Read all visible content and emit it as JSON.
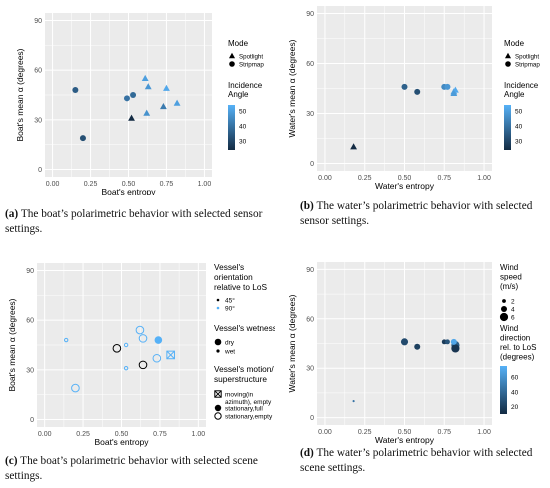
{
  "colors": {
    "panel_bg": "#ebebeb",
    "grid": "#ffffff",
    "scale_high": "#56b1f7",
    "scale_low": "#132b43",
    "text": "#000000",
    "axis_tick_text": "#4d4d4d",
    "open_dark": "#000000",
    "open_light": "#56b1f7"
  },
  "chart_data": [
    {
      "id": "a",
      "type": "scatter",
      "title": "",
      "xlabel": "Boat's entropy",
      "ylabel": "Boat's mean α (degrees)",
      "xlim": [
        -0.05,
        1.05
      ],
      "ylim": [
        -4.5,
        94.5
      ],
      "xticks": [
        "0.00",
        "0.25",
        "0.50",
        "0.75",
        "1.00"
      ],
      "xtick_values": [
        0,
        0.25,
        0.5,
        0.75,
        1.0
      ],
      "yticks": [
        "0",
        "30",
        "60",
        "90"
      ],
      "ytick_values": [
        0,
        30,
        60,
        90
      ],
      "grid": true,
      "legend": {
        "position": "right",
        "shape_title": "Mode",
        "shape_items": [
          {
            "label": "Spotlight",
            "shape": "triangle"
          },
          {
            "label": "Stripmap",
            "shape": "circle"
          }
        ],
        "color_title": "Incidence Angle",
        "color_ticks": [
          "50",
          "40",
          "30"
        ],
        "color_range": [
          24,
          54
        ]
      },
      "points": [
        {
          "x": 0.15,
          "y": 48,
          "shape": "circle",
          "color": 35
        },
        {
          "x": 0.2,
          "y": 19,
          "shape": "circle",
          "color": 32
        },
        {
          "x": 0.49,
          "y": 43,
          "shape": "circle",
          "color": 40
        },
        {
          "x": 0.53,
          "y": 45,
          "shape": "circle",
          "color": 38
        },
        {
          "x": 0.52,
          "y": 31,
          "shape": "triangle",
          "color": 24
        },
        {
          "x": 0.61,
          "y": 55,
          "shape": "triangle",
          "color": 50
        },
        {
          "x": 0.63,
          "y": 50,
          "shape": "triangle",
          "color": 48
        },
        {
          "x": 0.62,
          "y": 34,
          "shape": "triangle",
          "color": 47
        },
        {
          "x": 0.75,
          "y": 49,
          "shape": "triangle",
          "color": 52
        },
        {
          "x": 0.73,
          "y": 38,
          "shape": "triangle",
          "color": 42
        },
        {
          "x": 0.82,
          "y": 40,
          "shape": "triangle",
          "color": 50
        }
      ]
    },
    {
      "id": "b",
      "type": "scatter",
      "title": "",
      "xlabel": "Water's entropy",
      "ylabel": "Water's mean α (degrees)",
      "xlim": [
        -0.05,
        1.05
      ],
      "ylim": [
        -4.5,
        94.5
      ],
      "xticks": [
        "0.00",
        "0.25",
        "0.50",
        "0.75",
        "1.00"
      ],
      "xtick_values": [
        0,
        0.25,
        0.5,
        0.75,
        1.0
      ],
      "yticks": [
        "0",
        "30",
        "60",
        "90"
      ],
      "ytick_values": [
        0,
        30,
        60,
        90
      ],
      "grid": true,
      "legend": {
        "position": "right",
        "shape_title": "Mode",
        "shape_items": [
          {
            "label": "Spotlight",
            "shape": "triangle"
          },
          {
            "label": "Stripmap",
            "shape": "circle"
          }
        ],
        "color_title": "Incidence Angle",
        "color_ticks": [
          "50",
          "40",
          "30"
        ],
        "color_range": [
          24,
          54
        ]
      },
      "points": [
        {
          "x": 0.18,
          "y": 10,
          "shape": "triangle",
          "color": 24
        },
        {
          "x": 0.5,
          "y": 46,
          "shape": "circle",
          "color": 36
        },
        {
          "x": 0.58,
          "y": 43,
          "shape": "circle",
          "color": 32
        },
        {
          "x": 0.75,
          "y": 46,
          "shape": "circle",
          "color": 45
        },
        {
          "x": 0.77,
          "y": 46,
          "shape": "circle",
          "color": 48
        },
        {
          "x": 0.81,
          "y": 43,
          "shape": "triangle",
          "color": 50
        },
        {
          "x": 0.82,
          "y": 44,
          "shape": "triangle",
          "color": 52
        },
        {
          "x": 0.81,
          "y": 42,
          "shape": "triangle",
          "color": 49
        }
      ]
    },
    {
      "id": "c",
      "type": "scatter",
      "title": "",
      "xlabel": "Boat's entropy",
      "ylabel": "Boat's mean α (degrees)",
      "xlim": [
        -0.05,
        1.05
      ],
      "ylim": [
        -4.5,
        94.5
      ],
      "xticks": [
        "0.00",
        "0.25",
        "0.50",
        "0.75",
        "1.00"
      ],
      "xtick_values": [
        0,
        0.25,
        0.5,
        0.75,
        1.0
      ],
      "yticks": [
        "0",
        "30",
        "60",
        "90"
      ],
      "ytick_values": [
        0,
        30,
        60,
        90
      ],
      "grid": true,
      "legend": {
        "position": "right",
        "color_title": "Vessel's orientation relative to LoS",
        "color_items": [
          {
            "label": "45°",
            "color": "#000000"
          },
          {
            "label": "90°",
            "color": "#56b1f7"
          }
        ],
        "size_title": "Vessel's wetness",
        "size_items": [
          {
            "label": "dry",
            "size": "large"
          },
          {
            "label": "wet",
            "size": "small"
          }
        ],
        "shape_title": "Vessel's motion/ superstructure",
        "shape_items": [
          {
            "label": "moving(in azimuth), empty",
            "shape": "boxcross"
          },
          {
            "label": "stationary,full",
            "shape": "filled"
          },
          {
            "label": "stationary,empty",
            "shape": "open"
          }
        ]
      },
      "points": [
        {
          "x": 0.14,
          "y": 48,
          "orientation": "90°",
          "wetness": "wet",
          "motion": "stationary,empty"
        },
        {
          "x": 0.2,
          "y": 19,
          "orientation": "90°",
          "wetness": "dry",
          "motion": "stationary,empty"
        },
        {
          "x": 0.47,
          "y": 43,
          "orientation": "45°",
          "wetness": "dry",
          "motion": "stationary,empty"
        },
        {
          "x": 0.53,
          "y": 45,
          "orientation": "90°",
          "wetness": "wet",
          "motion": "stationary,empty"
        },
        {
          "x": 0.53,
          "y": 31,
          "orientation": "90°",
          "wetness": "wet",
          "motion": "stationary,empty"
        },
        {
          "x": 0.62,
          "y": 54,
          "orientation": "90°",
          "wetness": "dry",
          "motion": "stationary,empty"
        },
        {
          "x": 0.64,
          "y": 49,
          "orientation": "90°",
          "wetness": "dry",
          "motion": "stationary,empty"
        },
        {
          "x": 0.64,
          "y": 33,
          "orientation": "45°",
          "wetness": "dry",
          "motion": "stationary,empty"
        },
        {
          "x": 0.74,
          "y": 48,
          "orientation": "90°",
          "wetness": "dry",
          "motion": "stationary,full"
        },
        {
          "x": 0.73,
          "y": 37,
          "orientation": "90°",
          "wetness": "dry",
          "motion": "stationary,empty"
        },
        {
          "x": 0.82,
          "y": 39,
          "orientation": "90°",
          "wetness": "dry",
          "motion": "moving(in azimuth), empty"
        }
      ]
    },
    {
      "id": "d",
      "type": "scatter",
      "title": "",
      "xlabel": "Water's entropy",
      "ylabel": "Water's mean α (degrees)",
      "xlim": [
        -0.05,
        1.05
      ],
      "ylim": [
        -4.5,
        94.5
      ],
      "xticks": [
        "0.00",
        "0.25",
        "0.50",
        "0.75",
        "1.00"
      ],
      "xtick_values": [
        0,
        0.25,
        0.5,
        0.75,
        1.0
      ],
      "yticks": [
        "0",
        "30",
        "60",
        "90"
      ],
      "ytick_values": [
        0,
        30,
        60,
        90
      ],
      "grid": true,
      "legend": {
        "position": "right",
        "size_title": "Wind speed (m/s)",
        "size_items": [
          {
            "label": "2",
            "value": 2
          },
          {
            "label": "4",
            "value": 4
          },
          {
            "label": "6",
            "value": 6
          }
        ],
        "color_title": "Wind direction rel. to LoS (degrees)",
        "color_ticks": [
          "60",
          "40",
          "20"
        ],
        "color_range": [
          10,
          75
        ]
      },
      "points": [
        {
          "x": 0.18,
          "y": 10,
          "speed": 0.5,
          "direction": 45
        },
        {
          "x": 0.5,
          "y": 46,
          "speed": 5,
          "direction": 25
        },
        {
          "x": 0.58,
          "y": 43,
          "speed": 4,
          "direction": 20
        },
        {
          "x": 0.75,
          "y": 46,
          "speed": 3,
          "direction": 18
        },
        {
          "x": 0.77,
          "y": 46,
          "speed": 3,
          "direction": 30
        },
        {
          "x": 0.82,
          "y": 44,
          "speed": 6,
          "direction": 35
        },
        {
          "x": 0.82,
          "y": 42,
          "speed": 6,
          "direction": 15
        },
        {
          "x": 0.81,
          "y": 46,
          "speed": 4,
          "direction": 70
        }
      ]
    }
  ],
  "captions": [
    {
      "label": "(a)",
      "text": "The boat’s polarimetric behavior with selected sensor settings."
    },
    {
      "label": "(b)",
      "text": "The water’s polarimetric behavior with selected sensor settings."
    },
    {
      "label": "(c)",
      "text": "The boat’s polarimetric behavior with selected scene settings."
    },
    {
      "label": "(d)",
      "text": "The water’s polarimetric behavior with selected scene settings."
    }
  ]
}
